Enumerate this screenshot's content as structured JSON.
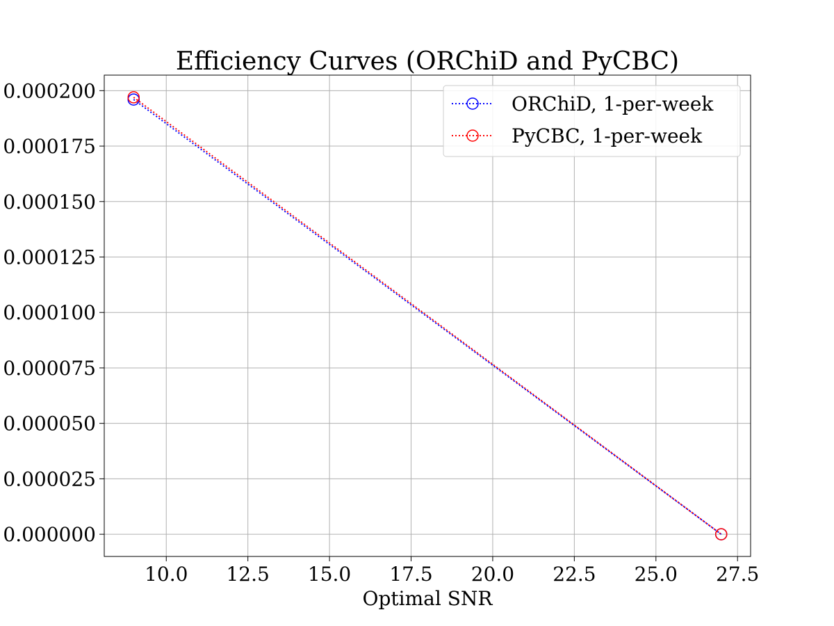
{
  "chart_data": {
    "type": "line",
    "title": "Efficiency Curves (ORChiD and PyCBC)",
    "xlabel": "Optimal SNR",
    "ylabel": "",
    "xlim": [
      8.1,
      27.9
    ],
    "ylim": [
      -1e-05,
      0.000207
    ],
    "x_ticks": [
      10.0,
      12.5,
      15.0,
      17.5,
      20.0,
      22.5,
      25.0,
      27.5
    ],
    "x_tick_labels": [
      "10.0",
      "12.5",
      "15.0",
      "17.5",
      "20.0",
      "22.5",
      "25.0",
      "27.5"
    ],
    "y_ticks": [
      0.0,
      2.5e-05,
      5e-05,
      7.5e-05,
      0.0001,
      0.000125,
      0.00015,
      0.000175,
      0.0002
    ],
    "y_tick_labels": [
      "0.000000",
      "0.000025",
      "0.000050",
      "0.000075",
      "0.000100",
      "0.000125",
      "0.000150",
      "0.000175",
      "0.000200"
    ],
    "grid": true,
    "legend_position": "top-right",
    "series": [
      {
        "name": "ORChiD, 1-per-week",
        "color": "#0000ff",
        "marker": "open-circle",
        "line_style": "dotted",
        "x": [
          9.0,
          27.0
        ],
        "y": [
          0.000196,
          0.0
        ]
      },
      {
        "name": "PyCBC, 1-per-week",
        "color": "#ff0000",
        "marker": "open-circle",
        "line_style": "dotted",
        "x": [
          9.0,
          27.0
        ],
        "y": [
          0.000197,
          0.0
        ]
      }
    ]
  }
}
